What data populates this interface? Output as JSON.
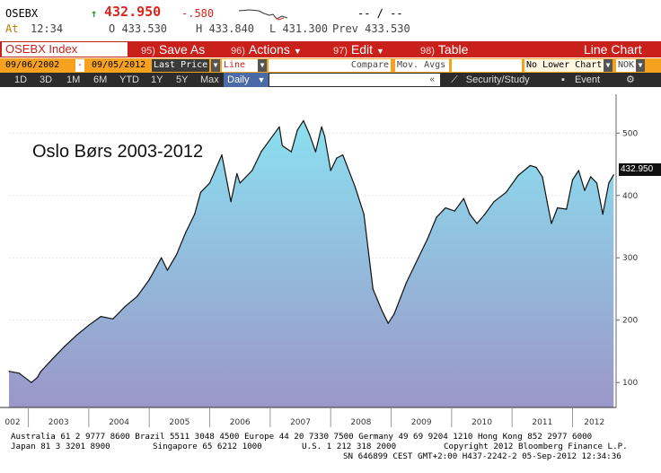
{
  "quote": {
    "ticker": "OSEBX",
    "arrow": "↑",
    "last": "432.950",
    "change": "-.580",
    "secondary": "-- / --",
    "at_label": "At",
    "time": "12:34",
    "open": "O 433.530",
    "high": "H 433.840",
    "low": "L 431.300",
    "prev": "Prev 433.530"
  },
  "menu": {
    "security": "OSEBX Index",
    "save_num": "95)",
    "save": "Save As",
    "actions_num": "96)",
    "actions": "Actions",
    "edit_num": "97)",
    "edit": "Edit",
    "table_num": "98)",
    "table": "Table",
    "chart_type": "Line Chart"
  },
  "params": {
    "start_date": "09/06/2002",
    "dash": "-",
    "end_date": "09/05/2012",
    "price_field": "Last Price",
    "style": "Line",
    "compare": "Compare",
    "mov_avgs": "Mov. Avgs",
    "lower_chart": "No Lower Chart",
    "currency": "NOK"
  },
  "toolbar": {
    "ranges": [
      "1D",
      "3D",
      "1M",
      "6M",
      "YTD",
      "1Y",
      "5Y",
      "Max"
    ],
    "frequency": "Daily",
    "field_arrow": "«",
    "security_study": "Security/Study",
    "event": "Event"
  },
  "chart_data": {
    "type": "area",
    "title": "Oslo Børs 2003-2012",
    "series_name": "OSEBX",
    "last_value_label": "432.950",
    "y_ticks": [
      100,
      200,
      300,
      400,
      500
    ],
    "ylim": [
      60,
      545
    ],
    "x_tick_labels": [
      "002",
      "2003",
      "2004",
      "2005",
      "2006",
      "2007",
      "2008",
      "2009",
      "2010",
      "2011",
      "2012"
    ],
    "x_unit": "year",
    "x": [
      2002.68,
      2002.85,
      2003.05,
      2003.15,
      2003.2,
      2003.4,
      2003.6,
      2003.8,
      2004.0,
      2004.2,
      2004.4,
      2004.6,
      2004.8,
      2005.0,
      2005.2,
      2005.3,
      2005.45,
      2005.6,
      2005.75,
      2005.85,
      2006.0,
      2006.2,
      2006.35,
      2006.45,
      2006.5,
      2006.7,
      2006.85,
      2007.0,
      2007.15,
      2007.2,
      2007.35,
      2007.45,
      2007.55,
      2007.65,
      2007.75,
      2007.85,
      2007.9,
      2008.0,
      2008.1,
      2008.2,
      2008.4,
      2008.55,
      2008.7,
      2008.85,
      2008.95,
      2009.05,
      2009.25,
      2009.45,
      2009.6,
      2009.75,
      2009.9,
      2010.05,
      2010.2,
      2010.3,
      2010.42,
      2010.55,
      2010.7,
      2010.9,
      2011.1,
      2011.3,
      2011.4,
      2011.5,
      2011.58,
      2011.65,
      2011.75,
      2011.9,
      2012.0,
      2012.1,
      2012.2,
      2012.3,
      2012.4,
      2012.5,
      2012.6,
      2012.68
    ],
    "values": [
      118,
      115,
      100,
      108,
      117,
      138,
      158,
      176,
      192,
      206,
      202,
      222,
      238,
      265,
      300,
      280,
      305,
      340,
      370,
      405,
      420,
      465,
      390,
      435,
      420,
      440,
      470,
      490,
      510,
      480,
      470,
      505,
      520,
      498,
      470,
      510,
      495,
      440,
      460,
      465,
      415,
      370,
      250,
      215,
      195,
      210,
      260,
      300,
      330,
      365,
      380,
      375,
      395,
      370,
      355,
      370,
      390,
      405,
      432,
      448,
      445,
      430,
      390,
      355,
      380,
      378,
      425,
      440,
      408,
      430,
      420,
      370,
      420,
      433
    ]
  },
  "footer": {
    "line1": "Australia 61 2 9777 8600 Brazil 5511 3048 4500 Europe 44 20 7330 7500 Germany 49 69 9204 1210 Hong Kong 852 2977 6000",
    "line2a": "Japan 81 3 3201 8900",
    "line2b": "Singapore 65 6212 1000",
    "line2c": "U.S. 1 212 318 2000",
    "line2d": "Copyright 2012 Bloomberg Finance L.P.",
    "line3": "SN 646899 CEST GMT+2:00 H437-2242-2 05-Sep-2012 12:34:36"
  },
  "colors": {
    "menu_red": "#c9201b",
    "param_orange": "#f7a21e",
    "area_top": "#8be0f0",
    "area_bottom": "#9b96c8",
    "price_red": "#d8261c",
    "up_green": "#1e9a1e"
  }
}
